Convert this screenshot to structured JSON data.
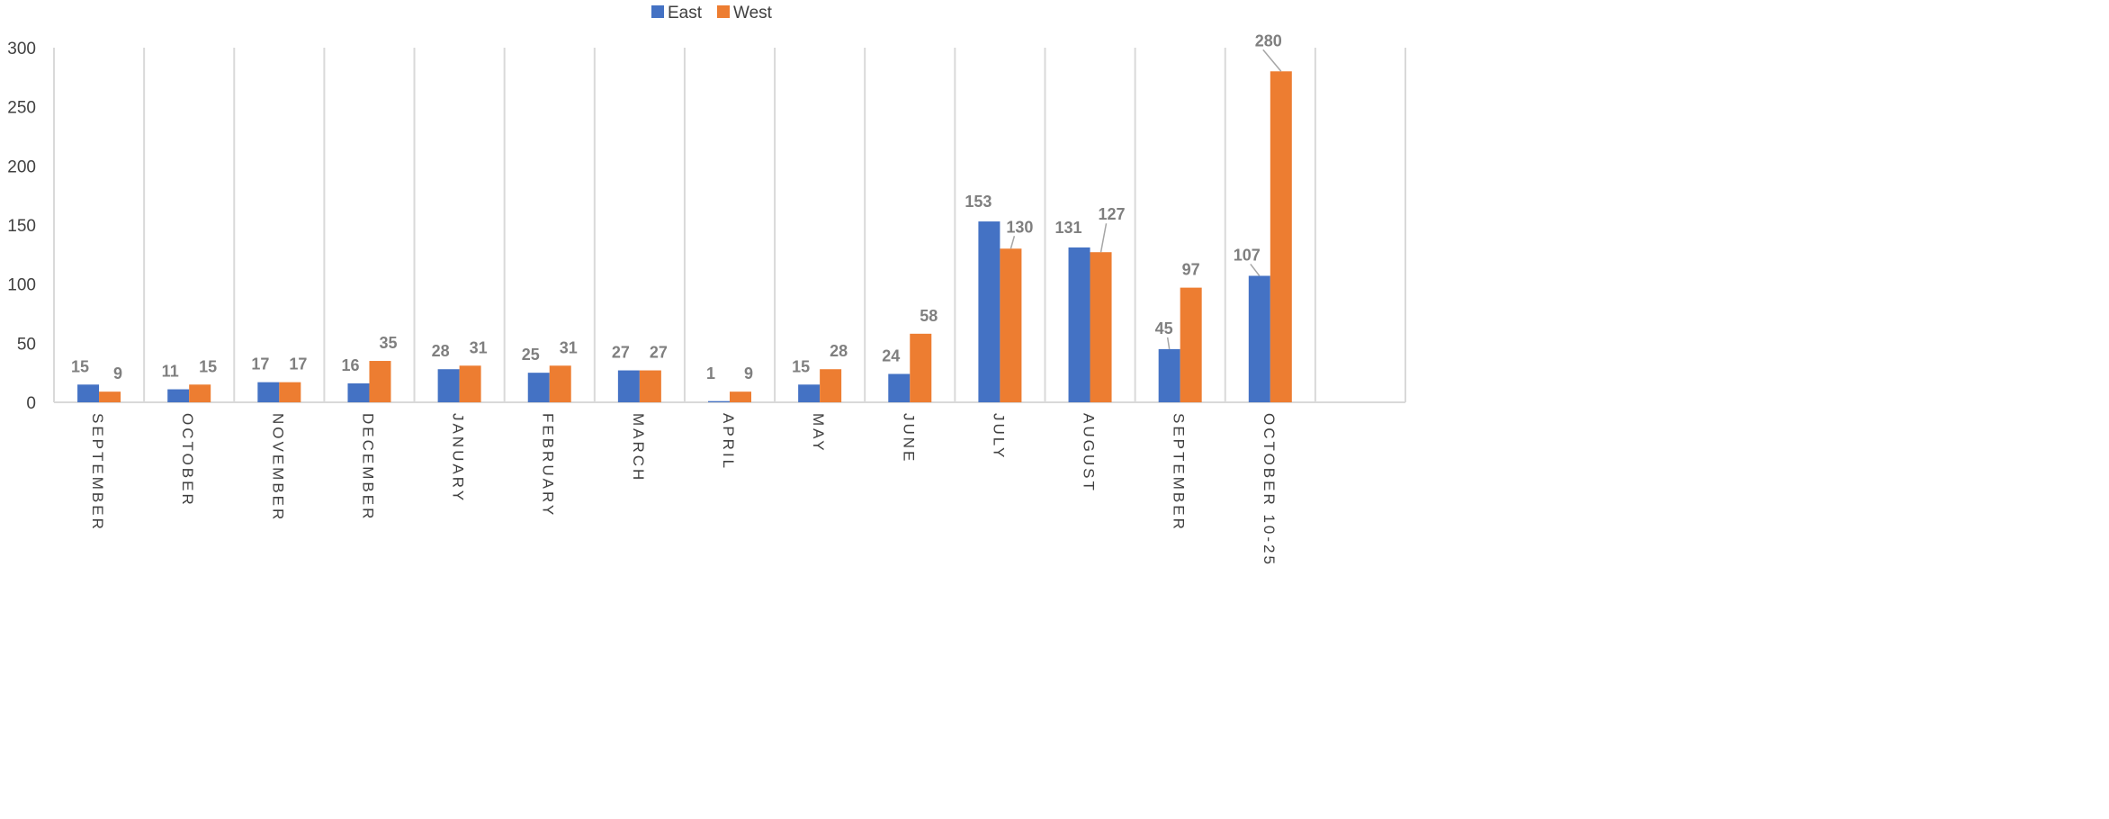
{
  "chart_data": {
    "type": "bar",
    "categories": [
      "SEPTEMBER",
      "OCTOBER",
      "NOVEMBER",
      "DECEMBER",
      "JANUARY",
      "FEBRUARY",
      "MARCH",
      "APRIL",
      "MAY",
      "JUNE",
      "JULY",
      "AUGUST",
      "SEPTEMBER",
      "OCTOBER 10-25"
    ],
    "series": [
      {
        "name": "East",
        "color": "#4472c4",
        "values": [
          15,
          11,
          17,
          16,
          28,
          25,
          27,
          1,
          15,
          24,
          153,
          131,
          45,
          107
        ]
      },
      {
        "name": "West",
        "color": "#ed7d31",
        "values": [
          9,
          15,
          17,
          35,
          31,
          31,
          27,
          9,
          28,
          58,
          130,
          127,
          97,
          280
        ]
      }
    ],
    "title": "",
    "xlabel": "",
    "ylabel": "",
    "ylim": [
      0,
      300
    ],
    "yticks": [
      0,
      50,
      100,
      150,
      200,
      250,
      300
    ],
    "legend_position": "top-center",
    "grid": "vertical category separators",
    "data_labels": true
  }
}
